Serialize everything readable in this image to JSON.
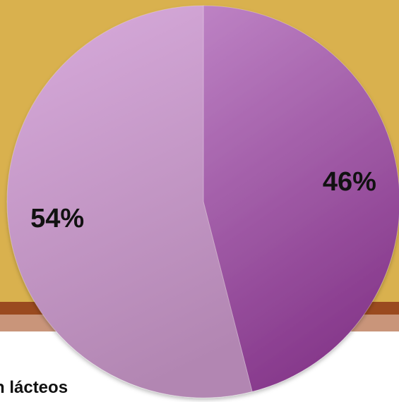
{
  "caption": "n lácteos",
  "chart_data": {
    "type": "pie",
    "start_angle_deg": 0,
    "direction": "clockwise",
    "slices": [
      {
        "label": "46%",
        "value": 46,
        "color": "#a65fae"
      },
      {
        "label": "54%",
        "value": 54,
        "color": "#c699c8"
      }
    ]
  }
}
